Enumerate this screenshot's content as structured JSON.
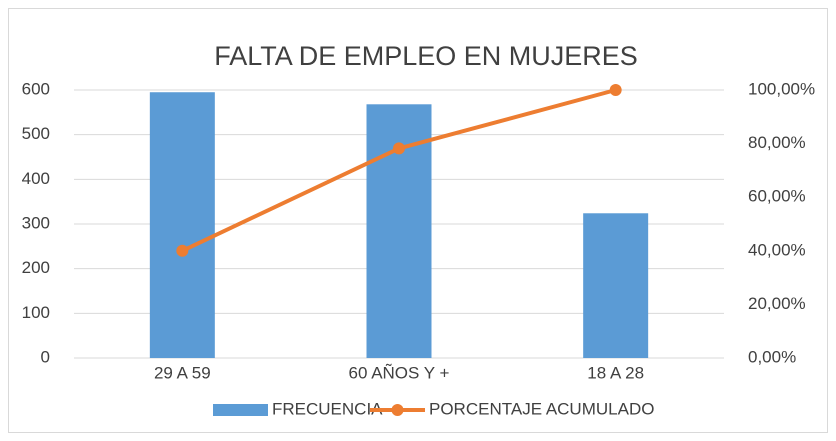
{
  "chart_data": {
    "type": "bar",
    "title": "FALTA DE EMPLEO EN MUJERES",
    "categories": [
      "29 A 59",
      "60 AÑOS Y +",
      "18 A 28"
    ],
    "series": [
      {
        "name": "FRECUENCIA",
        "type": "bar",
        "color": "#5b9bd5",
        "values": [
          595,
          568,
          324
        ]
      },
      {
        "name": "PORCENTAJE ACUMULADO",
        "type": "line",
        "axis": "y2",
        "color": "#ed7d31",
        "values": [
          40,
          78.2,
          100
        ]
      }
    ],
    "ylim": [
      0,
      600
    ],
    "yticks": [
      0,
      100,
      200,
      300,
      400,
      500,
      600
    ],
    "y2lim": [
      0,
      100
    ],
    "y2ticks": [
      {
        "value": 0,
        "label": "0,00%"
      },
      {
        "value": 20,
        "label": "20,00%"
      },
      {
        "value": 40,
        "label": "40,00%"
      },
      {
        "value": 60,
        "label": "60,00%"
      },
      {
        "value": 80,
        "label": "80,00%"
      },
      {
        "value": 100,
        "label": "100,00%"
      }
    ],
    "grid": true,
    "legend": "bottom"
  }
}
